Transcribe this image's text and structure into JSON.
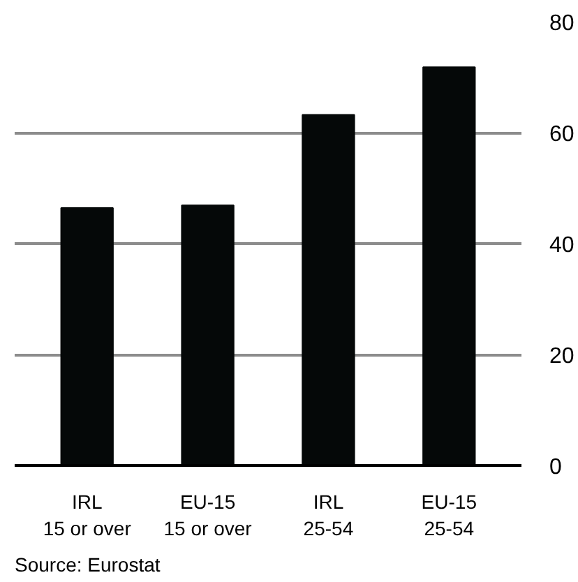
{
  "chart_data": {
    "type": "bar",
    "categories": [
      "IRL\n15 or over",
      "EU-15\n15 or over",
      "IRL\n25-54",
      "EU-15\n25-54"
    ],
    "values": [
      46.4,
      46.9,
      63.2,
      71.8
    ],
    "color": "#050808",
    "ylim": [
      0,
      80
    ],
    "yticks": [
      0,
      20,
      40,
      60,
      80
    ],
    "grid": "y",
    "annotations": [
      "Source:  Eurostat"
    ]
  }
}
